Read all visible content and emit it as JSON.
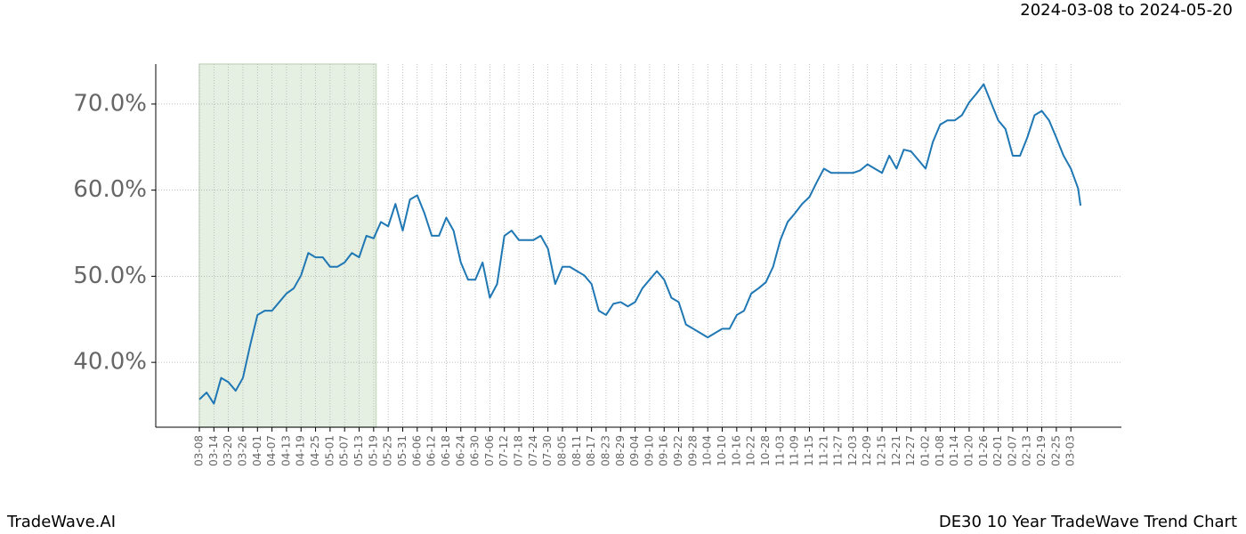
{
  "chart_data": {
    "type": "line",
    "subtitle": "2024-03-08 to 2024-05-20",
    "footer_left": "TradeWave.AI",
    "footer_right": "DE30 10 Year TradeWave Trend Chart",
    "shaded_range": [
      "03-08",
      "05-20"
    ],
    "grid": true,
    "ylim": [
      32.47,
      74.64
    ],
    "yticks": [
      {
        "value": 40,
        "label": "40.0%"
      },
      {
        "value": 50,
        "label": "50.0%"
      },
      {
        "value": 60,
        "label": "60.0%"
      },
      {
        "value": 70,
        "label": "70.0%"
      }
    ],
    "xticks": [
      "03-08",
      "03-14",
      "03-20",
      "03-26",
      "04-01",
      "04-07",
      "04-13",
      "04-19",
      "04-25",
      "05-01",
      "05-07",
      "05-13",
      "05-19",
      "05-25",
      "05-31",
      "06-06",
      "06-12",
      "06-18",
      "06-24",
      "06-30",
      "07-06",
      "07-12",
      "07-18",
      "07-24",
      "07-30",
      "08-05",
      "08-11",
      "08-17",
      "08-23",
      "08-29",
      "09-04",
      "09-10",
      "09-16",
      "09-22",
      "09-28",
      "10-04",
      "10-10",
      "10-16",
      "10-22",
      "10-28",
      "11-03",
      "11-09",
      "11-15",
      "11-21",
      "11-27",
      "12-03",
      "12-09",
      "12-15",
      "12-21",
      "12-27",
      "01-02",
      "01-08",
      "01-14",
      "01-20",
      "01-26",
      "02-01",
      "02-07",
      "02-13",
      "02-19",
      "02-25",
      "03-03"
    ],
    "x": [
      "03-08",
      "03-11",
      "03-14",
      "03-17",
      "03-20",
      "03-23",
      "03-26",
      "03-29",
      "04-01",
      "04-04",
      "04-07",
      "04-10",
      "04-13",
      "04-16",
      "04-19",
      "04-22",
      "04-25",
      "04-28",
      "05-01",
      "05-04",
      "05-07",
      "05-10",
      "05-13",
      "05-16",
      "05-19",
      "05-22",
      "05-25",
      "05-28",
      "05-31",
      "06-03",
      "06-06",
      "06-09",
      "06-12",
      "06-15",
      "06-18",
      "06-21",
      "06-24",
      "06-27",
      "06-30",
      "07-03",
      "07-06",
      "07-09",
      "07-12",
      "07-15",
      "07-18",
      "07-21",
      "07-24",
      "07-27",
      "07-30",
      "08-02",
      "08-05",
      "08-08",
      "08-11",
      "08-14",
      "08-17",
      "08-20",
      "08-23",
      "08-26",
      "08-29",
      "09-01",
      "09-04",
      "09-07",
      "09-10",
      "09-13",
      "09-16",
      "09-19",
      "09-22",
      "09-25",
      "09-28",
      "10-01",
      "10-04",
      "10-07",
      "10-10",
      "10-13",
      "10-16",
      "10-19",
      "10-22",
      "10-25",
      "10-28",
      "10-31",
      "11-03",
      "11-06",
      "11-09",
      "11-12",
      "11-15",
      "11-18",
      "11-21",
      "11-24",
      "11-27",
      "11-30",
      "12-03",
      "12-06",
      "12-09",
      "12-12",
      "12-15",
      "12-18",
      "12-21",
      "12-24",
      "12-27",
      "12-30",
      "01-02",
      "01-05",
      "01-08",
      "01-11",
      "01-14",
      "01-17",
      "01-20",
      "01-23",
      "01-26",
      "01-29",
      "02-01",
      "02-04",
      "02-07",
      "02-10",
      "02-13",
      "02-16",
      "02-19",
      "02-22",
      "02-25",
      "02-28",
      "03-03",
      "03-06",
      "03-07"
    ],
    "series": [
      {
        "color": "#1f77b4",
        "values": [
          35.7,
          36.5,
          35.2,
          38.2,
          37.7,
          36.7,
          38.2,
          42.0,
          45.5,
          46.0,
          46.0,
          47.0,
          48.0,
          48.6,
          50.1,
          52.7,
          52.2,
          52.2,
          51.1,
          51.1,
          51.6,
          52.7,
          52.2,
          54.7,
          54.4,
          56.3,
          55.8,
          58.4,
          55.3,
          58.9,
          59.4,
          57.3,
          54.7,
          54.7,
          56.8,
          55.3,
          51.6,
          49.6,
          49.6,
          51.6,
          47.5,
          49.1,
          54.7,
          55.3,
          54.2,
          54.2,
          54.2,
          54.7,
          53.2,
          49.1,
          51.1,
          51.1,
          50.6,
          50.1,
          49.1,
          46.0,
          45.5,
          46.8,
          47.0,
          46.5,
          47.0,
          48.6,
          49.6,
          50.6,
          49.6,
          47.5,
          47.0,
          44.4,
          43.9,
          43.4,
          42.9,
          43.4,
          43.9,
          43.9,
          45.5,
          46.0,
          48.0,
          48.6,
          49.3,
          51.1,
          54.2,
          56.3,
          57.3,
          58.4,
          59.2,
          60.9,
          62.5,
          62.0,
          62.0,
          62.0,
          62.0,
          62.3,
          63.0,
          62.5,
          62.0,
          64.0,
          62.5,
          64.7,
          64.5,
          63.5,
          62.5,
          65.6,
          67.6,
          68.1,
          68.1,
          68.7,
          70.2,
          71.2,
          72.3,
          70.2,
          68.1,
          67.1,
          64.0,
          64.0,
          66.1,
          68.7,
          69.2,
          68.1,
          66.1,
          64.0,
          62.5,
          60.2,
          58.2
        ]
      }
    ]
  }
}
